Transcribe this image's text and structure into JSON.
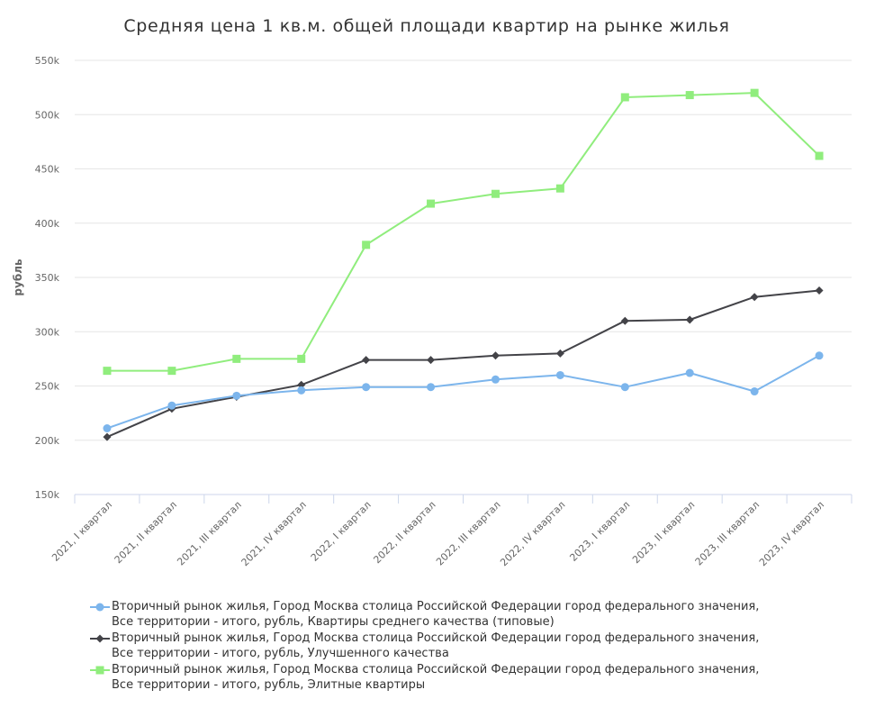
{
  "title": "Средняя цена 1 кв.м. общей площади квартир на рынке жилья",
  "chart_data": {
    "type": "line",
    "title": "Средняя цена 1 кв.м. общей площади квартир на рынке жилья",
    "xlabel": "",
    "ylabel": "рубль",
    "ylim": [
      150000,
      550000
    ],
    "yticks": [
      150000,
      200000,
      250000,
      300000,
      350000,
      400000,
      450000,
      500000,
      550000
    ],
    "ytick_labels": [
      "150k",
      "200k",
      "250k",
      "300k",
      "350k",
      "400k",
      "450k",
      "500k",
      "550k"
    ],
    "grid": true,
    "legend_position": "bottom",
    "categories": [
      "2021, I квартал",
      "2021, II квартал",
      "2021, III квартал",
      "2021, IV квартал",
      "2022, I квартал",
      "2022, II квартал",
      "2022, III квартал",
      "2022, IV квартал",
      "2023, I квартал",
      "2023, II квартал",
      "2023, III квартал",
      "2023, IV квартал"
    ],
    "series": [
      {
        "name_lines": [
          "Вторичный рынок жилья, Город Москва столица Российской Федерации город федерального значения,",
          "Все территории - итого, рубль, Квартиры среднего качества (типовые)"
        ],
        "color": "#7cb5ec",
        "marker": "circle",
        "values": [
          211000,
          232000,
          241000,
          246000,
          249000,
          249000,
          256000,
          260000,
          249000,
          262000,
          245000,
          278000
        ]
      },
      {
        "name_lines": [
          "Вторичный рынок жилья, Город Москва столица Российской Федерации город федерального значения,",
          "Все территории - итого, рубль, Улучшенного качества"
        ],
        "color": "#434348",
        "marker": "diamond",
        "values": [
          203000,
          229000,
          240000,
          251000,
          274000,
          274000,
          278000,
          280000,
          310000,
          311000,
          332000,
          338000
        ]
      },
      {
        "name_lines": [
          "Вторичный рынок жилья, Город Москва столица Российской Федерации город федерального значения,",
          "Все территории - итого, рубль, Элитные квартиры"
        ],
        "color": "#90ed7d",
        "marker": "square",
        "values": [
          264000,
          264000,
          275000,
          275000,
          380000,
          418000,
          427000,
          432000,
          516000,
          518000,
          520000,
          462000
        ]
      }
    ]
  }
}
